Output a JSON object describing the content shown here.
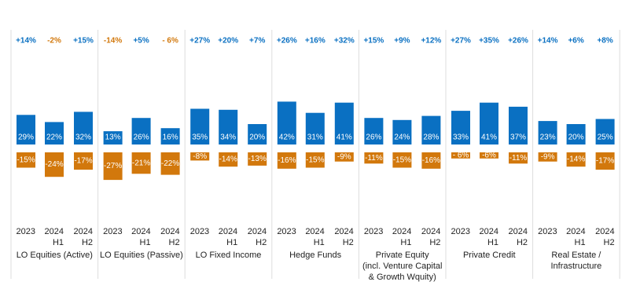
{
  "chart_data": {
    "type": "floating-bar",
    "groups": [
      "LO Equities (Active)",
      "LO Equities (Passive)",
      "LO Fixed Income",
      "Hedge Funds",
      "Private Equity\n(incl. Venture Capital\n& Growth Wquity)",
      "Private Credit",
      "Real Estate /\nInfrastructure"
    ],
    "categories": [
      "2023",
      "2024\nH1",
      "2024\nH2",
      "2023",
      "2024\nH1",
      "2024\nH2",
      "2023",
      "2024\nH1",
      "2024\nH2",
      "2023",
      "2024\nH1",
      "2024\nH2",
      "2023",
      "2024\nH1",
      "2024\nH2",
      "2023",
      "2024\nH1",
      "2024\nH2",
      "2023",
      "2024\nH1",
      "2024\nH2"
    ],
    "series": [
      {
        "color": "#0a70c2",
        "values": [
          29,
          22,
          32,
          13,
          26,
          16,
          35,
          34,
          20,
          42,
          31,
          41,
          26,
          24,
          28,
          33,
          41,
          37,
          23,
          20,
          25
        ],
        "value_labels": [
          "29%",
          "22%",
          "32%",
          "13%",
          "26%",
          "16%",
          "35%",
          "34%",
          "20%",
          "42%",
          "31%",
          "41%",
          "26%",
          "24%",
          "28%",
          "33%",
          "41%",
          "37%",
          "23%",
          "20%",
          "25%"
        ]
      },
      {
        "color": "#d2780c",
        "values": [
          -15,
          -24,
          -17,
          -27,
          -21,
          -22,
          -8,
          -14,
          -13,
          -16,
          -15,
          -9,
          -11,
          -15,
          -16,
          -6,
          -6,
          -11,
          -9,
          -14,
          -17
        ],
        "value_labels": [
          "-15%",
          "-24%",
          "-17%",
          "-27%",
          "-21%",
          "-22%",
          "-8%",
          "-14%",
          "-13%",
          "-16%",
          "-15%",
          "-9%",
          "-11%",
          "-15%",
          "-16%",
          "- 6%",
          "-6%",
          "-11%",
          "-9%",
          "-14%",
          "-17%"
        ]
      },
      {
        "values": [
          14,
          -2,
          15,
          -14,
          5,
          -6,
          27,
          20,
          7,
          26,
          16,
          32,
          15,
          9,
          12,
          27,
          35,
          26,
          14,
          6,
          8
        ],
        "value_labels": [
          "+14%",
          "-2%",
          "+15%",
          "-14%",
          "+5%",
          "- 6%",
          "+27%",
          "+20%",
          "+7%",
          "+26%",
          "+16%",
          "+32%",
          "+15%",
          "+9%",
          "+12%",
          "+27%",
          "+35%",
          "+26%",
          "+14%",
          "+6%",
          "+8%"
        ]
      }
    ]
  }
}
